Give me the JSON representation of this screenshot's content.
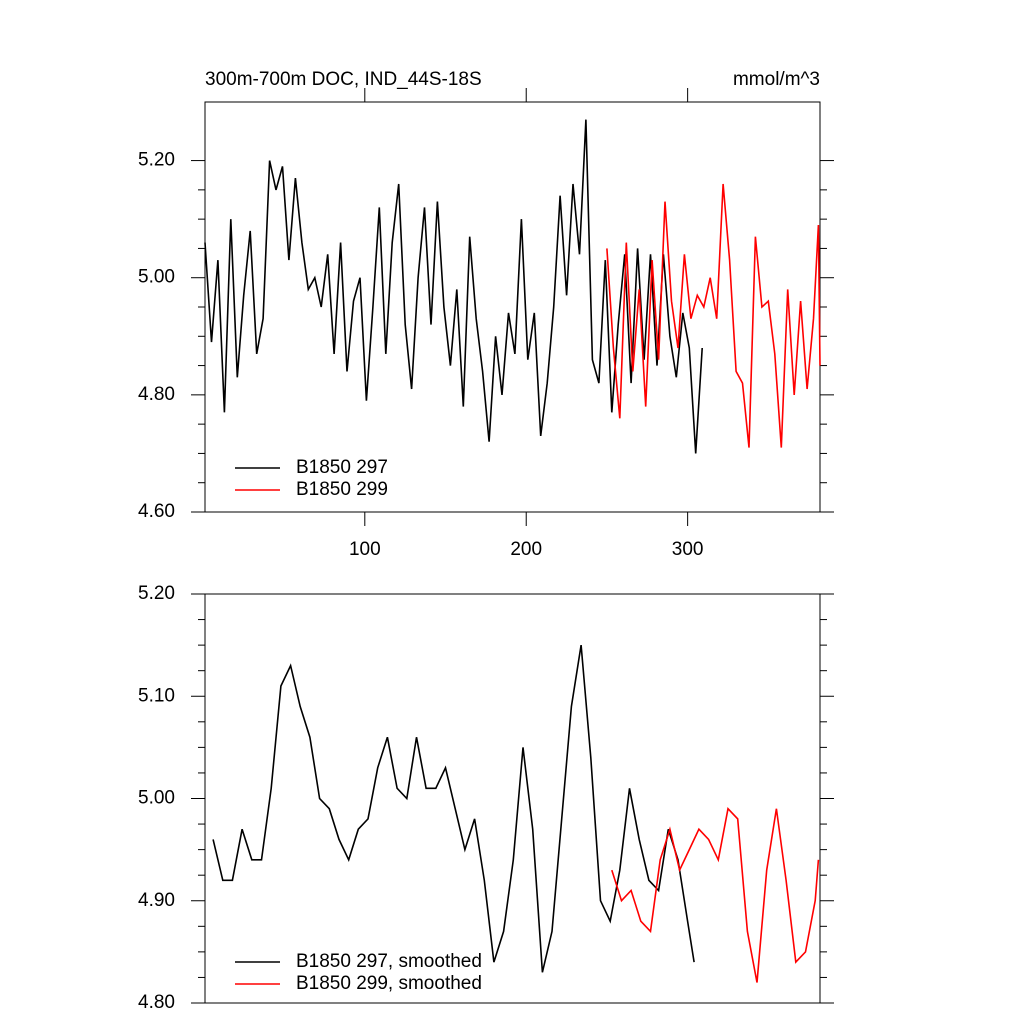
{
  "chart_data": [
    {
      "type": "line",
      "title": "300m-700m DOC, IND_44S-18S",
      "units": "mmol/m^3",
      "xlim": [
        1,
        382
      ],
      "xticks": [
        100,
        200,
        300
      ],
      "ylim": [
        4.6,
        5.3
      ],
      "yticks": [
        {
          "value": 4.6,
          "label": "4.60"
        },
        {
          "value": 4.8,
          "label": "4.80"
        },
        {
          "value": 5.0,
          "label": "5.00"
        },
        {
          "value": 5.2,
          "label": "5.20"
        }
      ],
      "series": [
        {
          "name": "B1850 297",
          "color": "#000000",
          "x": [
            1,
            5,
            9,
            13,
            17,
            21,
            25,
            29,
            33,
            37,
            41,
            45,
            49,
            53,
            57,
            61,
            65,
            69,
            73,
            77,
            81,
            85,
            89,
            93,
            97,
            101,
            105,
            109,
            113,
            117,
            121,
            125,
            129,
            133,
            137,
            141,
            145,
            149,
            153,
            157,
            161,
            165,
            169,
            173,
            177,
            181,
            185,
            189,
            193,
            197,
            201,
            205,
            209,
            213,
            217,
            221,
            225,
            229,
            233,
            237,
            241,
            245,
            249,
            253,
            257,
            261,
            265,
            269,
            273,
            277,
            281,
            285,
            289,
            293,
            297,
            301,
            305,
            309
          ],
          "values": [
            5.06,
            4.89,
            5.03,
            4.77,
            5.1,
            4.83,
            4.97,
            5.08,
            4.87,
            4.93,
            5.2,
            5.15,
            5.19,
            5.03,
            5.17,
            5.06,
            4.98,
            5.0,
            4.95,
            5.04,
            4.87,
            5.06,
            4.84,
            4.96,
            5.0,
            4.79,
            4.95,
            5.12,
            4.87,
            5.06,
            5.16,
            4.92,
            4.81,
            5.0,
            5.12,
            4.92,
            5.13,
            4.95,
            4.85,
            4.98,
            4.78,
            5.07,
            4.93,
            4.84,
            4.72,
            4.9,
            4.8,
            4.94,
            4.87,
            5.1,
            4.86,
            4.94,
            4.73,
            4.82,
            4.95,
            5.14,
            4.97,
            5.16,
            5.04,
            5.27,
            4.86,
            4.82,
            5.03,
            4.77,
            4.92,
            5.04,
            4.82,
            5.05,
            4.86,
            5.04,
            4.85,
            5.04,
            4.9,
            4.83,
            4.94,
            4.88,
            4.7,
            4.88
          ]
        },
        {
          "name": "B1850 299",
          "color": "#ff0000",
          "x": [
            250,
            254,
            258,
            262,
            266,
            270,
            274,
            278,
            282,
            286,
            290,
            294,
            298,
            302,
            306,
            310,
            314,
            318,
            322,
            326,
            330,
            334,
            338,
            342,
            346,
            350,
            354,
            358,
            362,
            366,
            370,
            374,
            378,
            381,
            382
          ],
          "values": [
            5.05,
            4.88,
            4.76,
            5.06,
            4.84,
            4.98,
            4.78,
            5.03,
            4.86,
            5.13,
            4.96,
            4.88,
            5.04,
            4.93,
            4.97,
            4.95,
            5.0,
            4.93,
            5.16,
            5.03,
            4.84,
            4.82,
            4.71,
            5.07,
            4.95,
            4.96,
            4.87,
            4.71,
            4.98,
            4.8,
            4.96,
            4.81,
            4.93,
            5.09,
            4.85
          ]
        }
      ]
    },
    {
      "type": "line",
      "xlim": [
        1,
        382
      ],
      "ylim": [
        4.8,
        5.2
      ],
      "yticks": [
        {
          "value": 4.8,
          "label": "4.80"
        },
        {
          "value": 4.9,
          "label": "4.90"
        },
        {
          "value": 5.0,
          "label": "5.00"
        },
        {
          "value": 5.1,
          "label": "5.10"
        },
        {
          "value": 5.2,
          "label": "5.20"
        }
      ],
      "series": [
        {
          "name": "B1850 297, smoothed",
          "color": "#000000",
          "x": [
            6,
            12,
            18,
            24,
            30,
            36,
            42,
            48,
            54,
            60,
            66,
            72,
            78,
            84,
            90,
            96,
            102,
            108,
            114,
            120,
            126,
            132,
            138,
            144,
            150,
            156,
            162,
            168,
            174,
            180,
            186,
            192,
            198,
            204,
            210,
            216,
            222,
            228,
            234,
            240,
            246,
            252,
            258,
            264,
            270,
            276,
            282,
            288,
            294,
            300,
            304
          ],
          "values": [
            4.96,
            4.92,
            4.92,
            4.97,
            4.94,
            4.94,
            5.01,
            5.11,
            5.13,
            5.09,
            5.06,
            5.0,
            4.99,
            4.96,
            4.94,
            4.97,
            4.98,
            5.03,
            5.06,
            5.01,
            5.0,
            5.06,
            5.01,
            5.01,
            5.03,
            4.99,
            4.95,
            4.98,
            4.92,
            4.84,
            4.87,
            4.94,
            5.05,
            4.97,
            4.83,
            4.87,
            4.98,
            5.09,
            5.15,
            5.04,
            4.9,
            4.88,
            4.93,
            5.01,
            4.96,
            4.92,
            4.91,
            4.97,
            4.94,
            4.88,
            4.84
          ]
        },
        {
          "name": "B1850 299, smoothed",
          "color": "#ff0000",
          "x": [
            253,
            259,
            265,
            271,
            277,
            283,
            289,
            295,
            301,
            307,
            313,
            319,
            325,
            331,
            337,
            343,
            349,
            355,
            361,
            367,
            373,
            379,
            381
          ],
          "values": [
            4.93,
            4.9,
            4.91,
            4.88,
            4.87,
            4.94,
            4.97,
            4.93,
            4.95,
            4.97,
            4.96,
            4.94,
            4.99,
            4.98,
            4.87,
            4.82,
            4.93,
            4.99,
            4.92,
            4.84,
            4.85,
            4.9,
            4.94
          ]
        }
      ]
    }
  ]
}
